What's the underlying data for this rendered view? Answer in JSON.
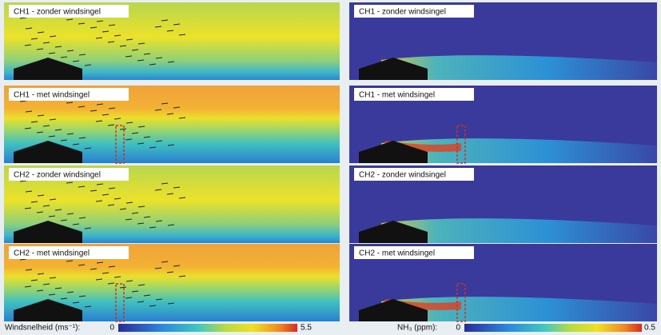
{
  "panels": {
    "left": [
      "CH1 - zonder windsingel",
      "CH1 - met windsingel",
      "CH2 - zonder windsingel",
      "CH2 - met windsingel"
    ],
    "right": [
      "CH1 - zonder windsingel",
      "CH1 - met windsingel",
      "CH2 - zonder windsingel",
      "CH2 - met windsingel"
    ]
  },
  "legends": [
    {
      "label": "Windsnelheid (ms⁻¹):",
      "min": 0,
      "max": 5.5
    },
    {
      "label": "NH₃ (ppm):",
      "min": 0,
      "max": 0.5
    }
  ]
}
